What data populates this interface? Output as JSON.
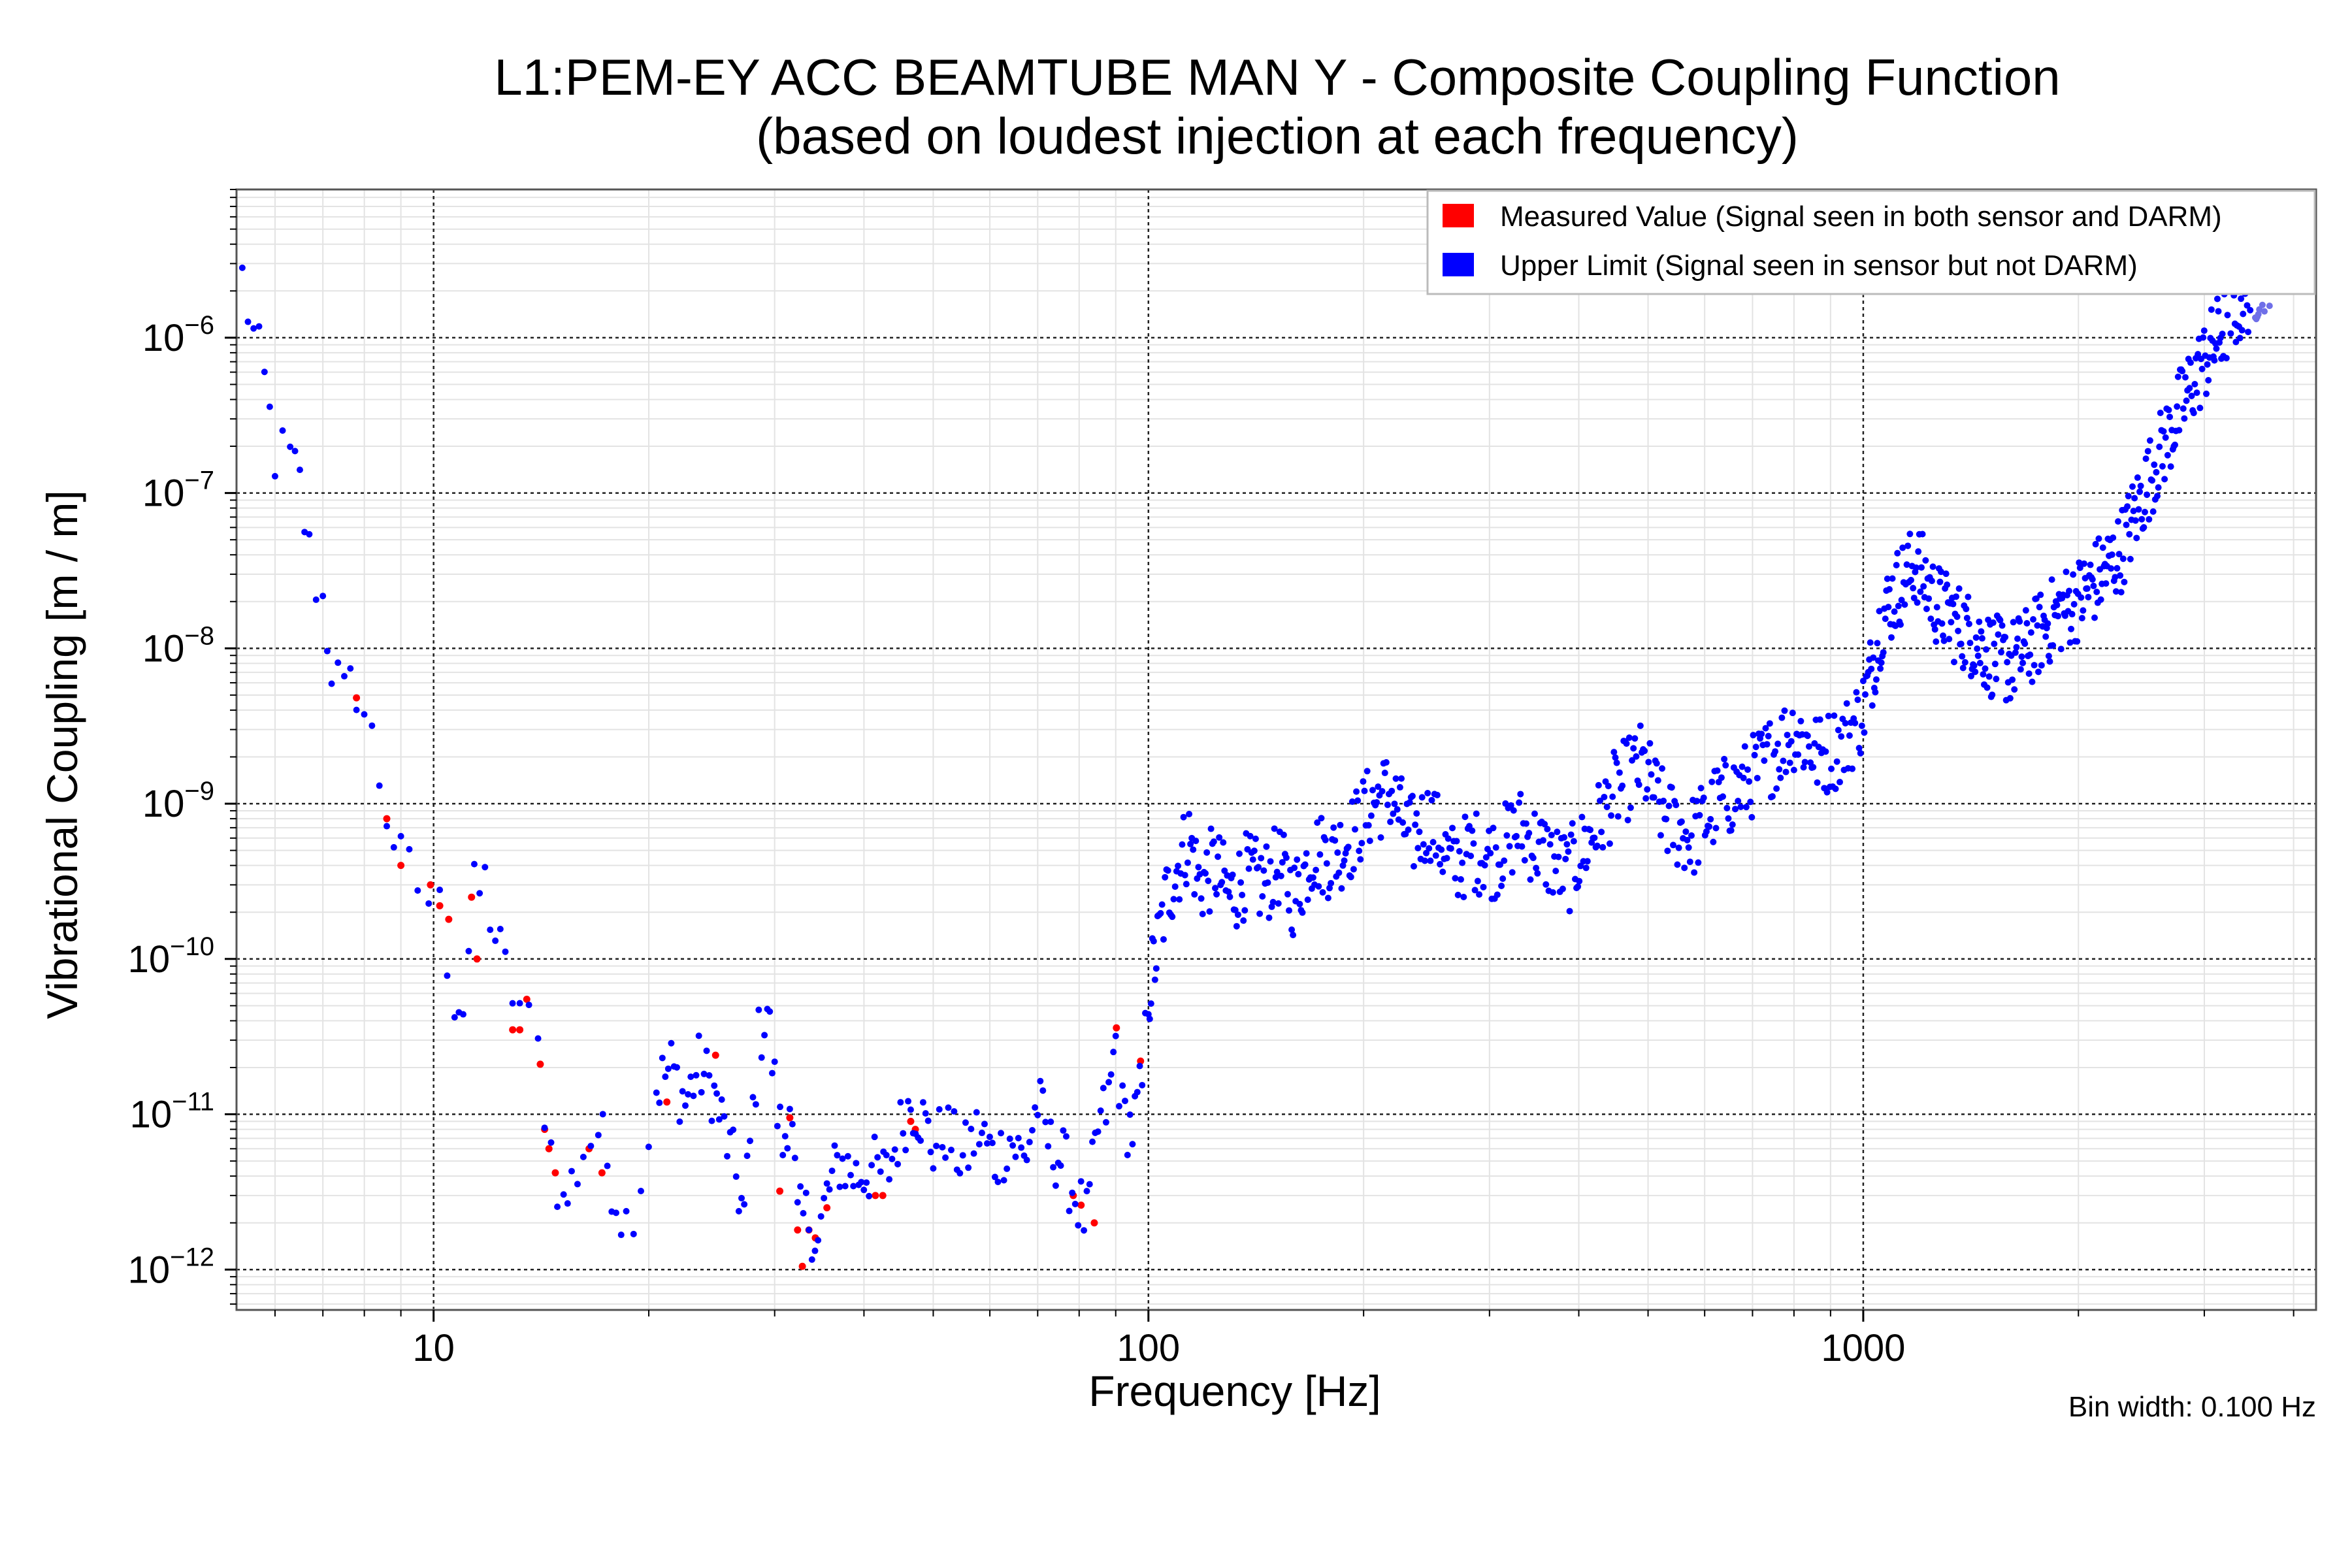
{
  "chart_data": {
    "type": "scatter",
    "title": "L1:PEM-EY ACC BEAMTUBE MAN Y - Composite Coupling Function",
    "subtitle": "(based on loudest injection at each frequency)",
    "xlabel": "Frequency [Hz]",
    "ylabel": "Vibrational Coupling [m / m]",
    "xscale": "log",
    "yscale": "log",
    "xlim": [
      5.3,
      4300
    ],
    "ylim": [
      5.5e-13,
      9e-06
    ],
    "grid": true,
    "x_ticks": [
      {
        "value": 10,
        "label": "10"
      },
      {
        "value": 100,
        "label": "100"
      },
      {
        "value": 1000,
        "label": "1000"
      }
    ],
    "y_ticks": [
      {
        "value": 1e-06,
        "mantissa": "10",
        "exp": "−6"
      },
      {
        "value": 1e-07,
        "mantissa": "10",
        "exp": "−7"
      },
      {
        "value": 1e-08,
        "mantissa": "10",
        "exp": "−8"
      },
      {
        "value": 1e-09,
        "mantissa": "10",
        "exp": "−9"
      },
      {
        "value": 1e-10,
        "mantissa": "10",
        "exp": "−10"
      },
      {
        "value": 1e-11,
        "mantissa": "10",
        "exp": "−11"
      },
      {
        "value": 1e-12,
        "mantissa": "10",
        "exp": "−12"
      }
    ],
    "legend": {
      "position": "top-right",
      "entries": [
        {
          "label": "Measured Value (Signal seen in both sensor and DARM)",
          "color": "#ff0000"
        },
        {
          "label": "Upper Limit (Signal seen in sensor but not DARM)",
          "color": "#0000ff"
        }
      ]
    },
    "annotation": "Bin width: 0.100 Hz",
    "series": [
      {
        "name": "Measured Value",
        "color": "#ff0000",
        "points": [
          [
            7.8,
            4.8e-09
          ],
          [
            8.6,
            8e-10
          ],
          [
            9.0,
            4e-10
          ],
          [
            9.9,
            3e-10
          ],
          [
            10.2,
            2.2e-10
          ],
          [
            10.5,
            1.8e-10
          ],
          [
            11.3,
            2.5e-10
          ],
          [
            11.5,
            1e-10
          ],
          [
            12.9,
            3.5e-11
          ],
          [
            13.2,
            3.5e-11
          ],
          [
            13.5,
            5.5e-11
          ],
          [
            14.1,
            2.1e-11
          ],
          [
            14.3,
            8e-12
          ],
          [
            14.5,
            6e-12
          ],
          [
            14.8,
            4.2e-12
          ],
          [
            16.5,
            6e-12
          ],
          [
            17.2,
            4.2e-12
          ],
          [
            21.2,
            1.2e-11
          ],
          [
            24.8,
            2.4e-11
          ],
          [
            30.5,
            3.2e-12
          ],
          [
            31.5,
            9.5e-12
          ],
          [
            32.3,
            1.8e-12
          ],
          [
            32.8,
            1.05e-12
          ],
          [
            33.5,
            1.8e-12
          ],
          [
            34.2,
            1.6e-12
          ],
          [
            35.5,
            2.5e-12
          ],
          [
            41.5,
            3e-12
          ],
          [
            42.5,
            3e-12
          ],
          [
            46.5,
            9e-12
          ],
          [
            47.2,
            8e-12
          ],
          [
            78.5,
            3e-12
          ],
          [
            80.5,
            2.6e-12
          ],
          [
            84.0,
            2e-12
          ],
          [
            90.2,
            3.6e-11
          ],
          [
            97.5,
            2.2e-11
          ]
        ]
      },
      {
        "name": "Upper Limit",
        "color": "#0000ff",
        "anchors": [
          [
            5.4,
            2.4e-06
          ],
          [
            5.6,
            1e-06
          ],
          [
            5.8,
            5e-07
          ],
          [
            6.0,
            1.8e-07
          ],
          [
            6.3,
            1.6e-07
          ],
          [
            6.5,
            1.1e-07
          ],
          [
            6.7,
            4e-08
          ],
          [
            7.0,
            2e-08
          ],
          [
            7.2,
            8e-09
          ],
          [
            7.5,
            4.5e-09
          ],
          [
            7.8,
            6e-09
          ],
          [
            8.2,
            2.5e-09
          ],
          [
            8.6,
            9e-10
          ],
          [
            9.0,
            4e-10
          ],
          [
            9.5,
            3e-10
          ],
          [
            10.2,
            2e-10
          ],
          [
            10.7,
            6e-11
          ],
          [
            11.0,
            5e-11
          ],
          [
            11.4,
            2.5e-10
          ],
          [
            11.8,
            3e-10
          ],
          [
            12.2,
            1.4e-10
          ],
          [
            12.6,
            8e-11
          ],
          [
            13.2,
            5e-11
          ],
          [
            14.0,
            2.5e-11
          ],
          [
            14.6,
            6e-12
          ],
          [
            15.2,
            2.5e-12
          ],
          [
            15.6,
            3.5e-12
          ],
          [
            16.2,
            6e-12
          ],
          [
            17.0,
            8e-12
          ],
          [
            17.5,
            5e-12
          ],
          [
            18.0,
            3e-12
          ],
          [
            18.6,
            2e-12
          ],
          [
            19.5,
            4e-12
          ],
          [
            20.5,
            1.5e-11
          ],
          [
            21.5,
            2e-11
          ],
          [
            22.5,
            1.2e-11
          ],
          [
            23.5,
            2e-11
          ],
          [
            24.5,
            1.5e-11
          ],
          [
            25.5,
            8e-12
          ],
          [
            26.5,
            4e-12
          ],
          [
            27.2,
            2.2e-12
          ],
          [
            28.5,
            3e-11
          ],
          [
            29.3,
            5e-11
          ],
          [
            30.0,
            1.5e-11
          ],
          [
            30.8,
            6e-12
          ],
          [
            31.5,
            1.3e-11
          ],
          [
            32.3,
            2e-12
          ],
          [
            33.5,
            2.2e-12
          ],
          [
            34.5,
            1.5e-12
          ],
          [
            35.5,
            3e-12
          ],
          [
            37,
            5e-12
          ],
          [
            39,
            4e-12
          ],
          [
            41,
            4.5e-12
          ],
          [
            43,
            4e-12
          ],
          [
            45,
            8e-12
          ],
          [
            46.5,
            1.2e-11
          ],
          [
            48,
            1e-11
          ],
          [
            50,
            6e-12
          ],
          [
            52,
            8e-12
          ],
          [
            55,
            5e-12
          ],
          [
            58,
            8e-12
          ],
          [
            61,
            5e-12
          ],
          [
            64,
            7e-12
          ],
          [
            67,
            5e-12
          ],
          [
            70,
            1.2e-11
          ],
          [
            73,
            6e-12
          ],
          [
            76,
            5e-12
          ],
          [
            79,
            3e-12
          ],
          [
            82,
            2e-12
          ],
          [
            85,
            8e-12
          ],
          [
            88,
            1.2e-11
          ],
          [
            90,
            3e-11
          ],
          [
            92,
            1e-11
          ],
          [
            95,
            8e-12
          ],
          [
            98,
            1.5e-11
          ],
          [
            100,
            6e-11
          ],
          [
            103,
            1.2e-10
          ],
          [
            106,
            2.5e-10
          ],
          [
            110,
            4e-10
          ],
          [
            114,
            6e-10
          ],
          [
            118,
            3e-10
          ],
          [
            124,
            4e-10
          ],
          [
            130,
            2.5e-10
          ],
          [
            137,
            3.5e-10
          ],
          [
            145,
            3e-10
          ],
          [
            152,
            4e-10
          ],
          [
            160,
            2.5e-10
          ],
          [
            170,
            5e-10
          ],
          [
            180,
            4.5e-10
          ],
          [
            192,
            6e-10
          ],
          [
            205,
            1e-09
          ],
          [
            218,
            1.2e-09
          ],
          [
            232,
            6e-10
          ],
          [
            248,
            8e-10
          ],
          [
            265,
            4e-10
          ],
          [
            285,
            5e-10
          ],
          [
            305,
            4.5e-10
          ],
          [
            330,
            7e-10
          ],
          [
            355,
            5e-10
          ],
          [
            385,
            3.5e-10
          ],
          [
            415,
            6e-10
          ],
          [
            450,
            1.2e-09
          ],
          [
            490,
            1.8e-09
          ],
          [
            530,
            8e-10
          ],
          [
            575,
            6e-10
          ],
          [
            625,
            1e-09
          ],
          [
            680,
            1.3e-09
          ],
          [
            740,
            2e-09
          ],
          [
            800,
            3e-09
          ],
          [
            870,
            2e-09
          ],
          [
            940,
            2.5e-09
          ],
          [
            1000,
            4e-09
          ],
          [
            1060,
            1.5e-08
          ],
          [
            1120,
            2.5e-08
          ],
          [
            1190,
            3.5e-08
          ],
          [
            1260,
            2e-08
          ],
          [
            1340,
            1.5e-08
          ],
          [
            1420,
            1.2e-08
          ],
          [
            1510,
            9e-09
          ],
          [
            1600,
            8e-09
          ],
          [
            1700,
            1e-08
          ],
          [
            1800,
            1.4e-08
          ],
          [
            1910,
            1.8e-08
          ],
          [
            2030,
            2.2e-08
          ],
          [
            2150,
            3e-08
          ],
          [
            2280,
            4e-08
          ],
          [
            2420,
            8e-08
          ],
          [
            2570,
            1.6e-07
          ],
          [
            2720,
            2.8e-07
          ],
          [
            2880,
            5e-07
          ],
          [
            3050,
            8e-07
          ],
          [
            3200,
            1.2e-06
          ],
          [
            3300,
            1.5e-06
          ],
          [
            3800,
            3.5e-06
          ]
        ]
      }
    ]
  }
}
